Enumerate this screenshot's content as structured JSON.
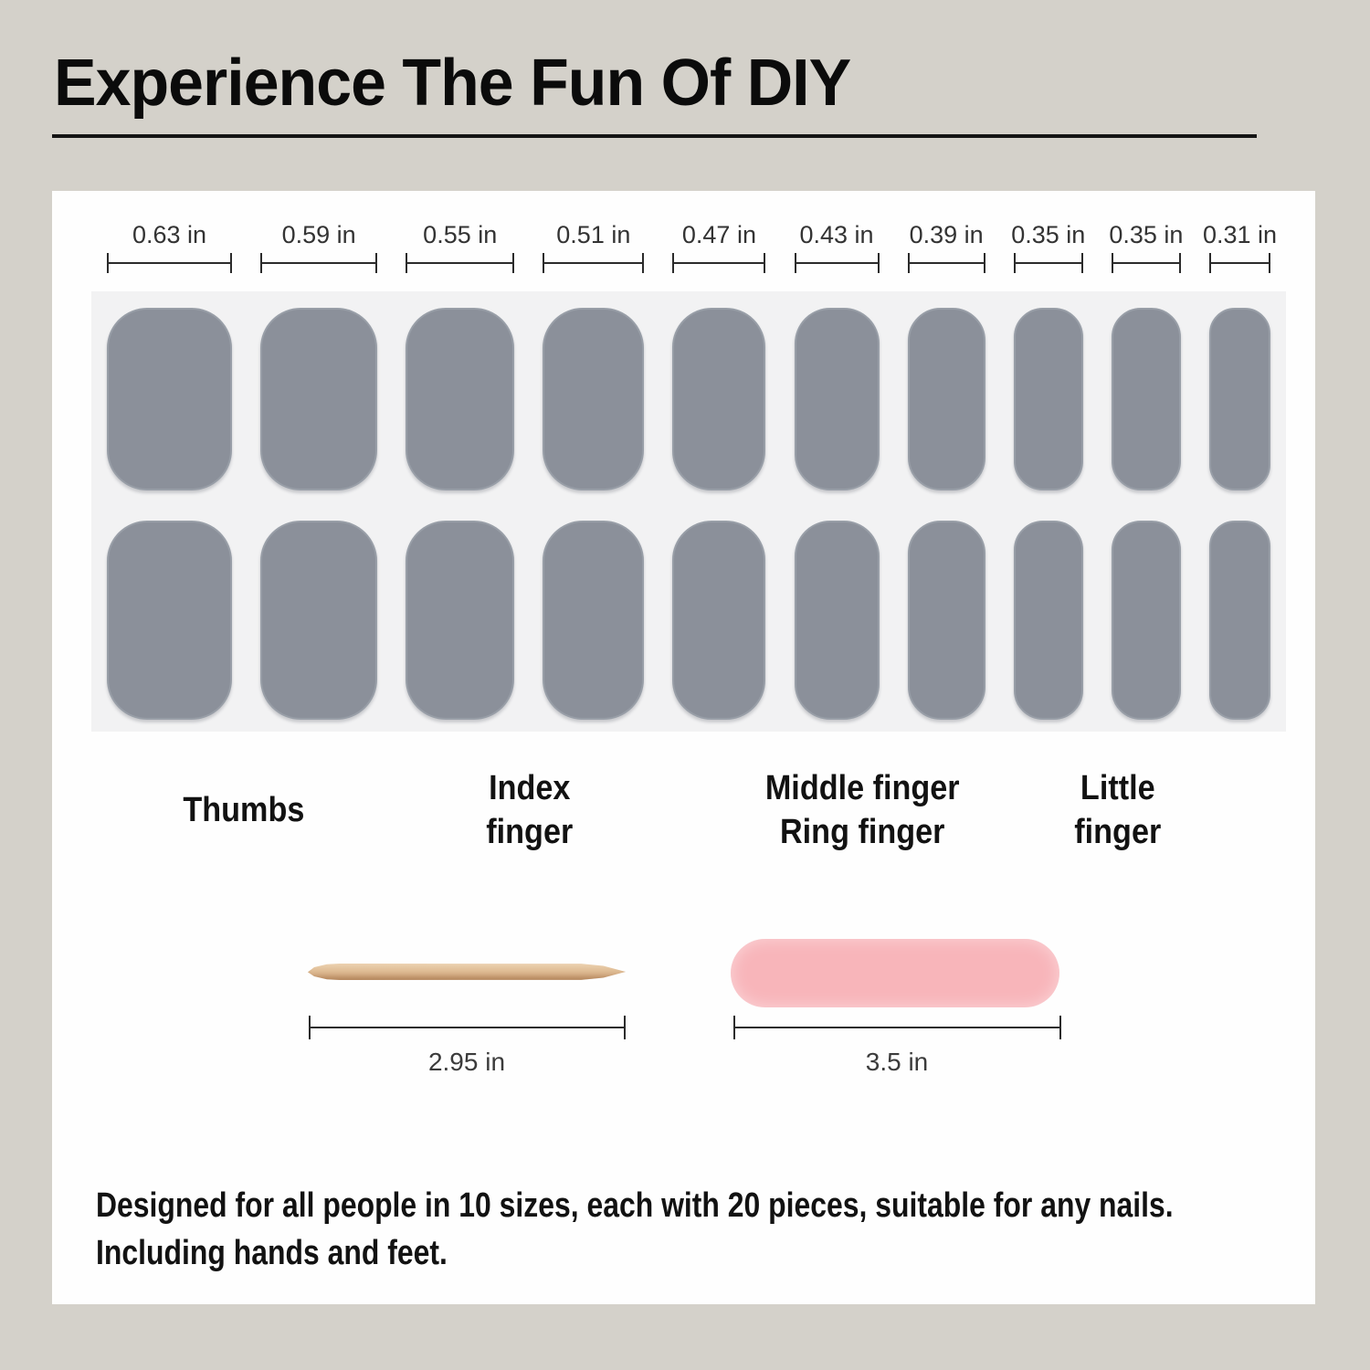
{
  "title": "Experience The Fun Of DIY",
  "sizes": [
    {
      "label": "0.63 in",
      "inches": 0.63
    },
    {
      "label": "0.59 in",
      "inches": 0.59
    },
    {
      "label": "0.55 in",
      "inches": 0.55
    },
    {
      "label": "0.51 in",
      "inches": 0.51
    },
    {
      "label": "0.47 in",
      "inches": 0.47
    },
    {
      "label": "0.43 in",
      "inches": 0.43
    },
    {
      "label": "0.39 in",
      "inches": 0.39
    },
    {
      "label": "0.35 in",
      "inches": 0.35
    },
    {
      "label": "0.35 in",
      "inches": 0.35
    },
    {
      "label": "0.31 in",
      "inches": 0.31
    }
  ],
  "rows_per_column": 2,
  "finger_labels": [
    {
      "text": "Thumbs"
    },
    {
      "text": "Index\nfinger"
    },
    {
      "text": "Middle finger\nRing finger"
    },
    {
      "text": "Little\nfinger"
    }
  ],
  "tools": {
    "stick": {
      "name": "wooden cuticle stick",
      "length_label": "2.95 in",
      "color": "#dfbc94"
    },
    "file": {
      "name": "mini nail file",
      "length_label": "3.5 in",
      "color": "#f8b5ba"
    }
  },
  "description": {
    "line1": "Designed for all people in 10 sizes, each with 20 pieces, suitable for any nails.",
    "line2": "Including hands and feet."
  },
  "colors": {
    "page_bg": "#d4d1ca",
    "card_bg": "#fefefe",
    "panel_bg": "#f2f2f3",
    "nail": "#8b909a",
    "text_dark": "#121212",
    "measure_text": "#3b3b3b"
  }
}
